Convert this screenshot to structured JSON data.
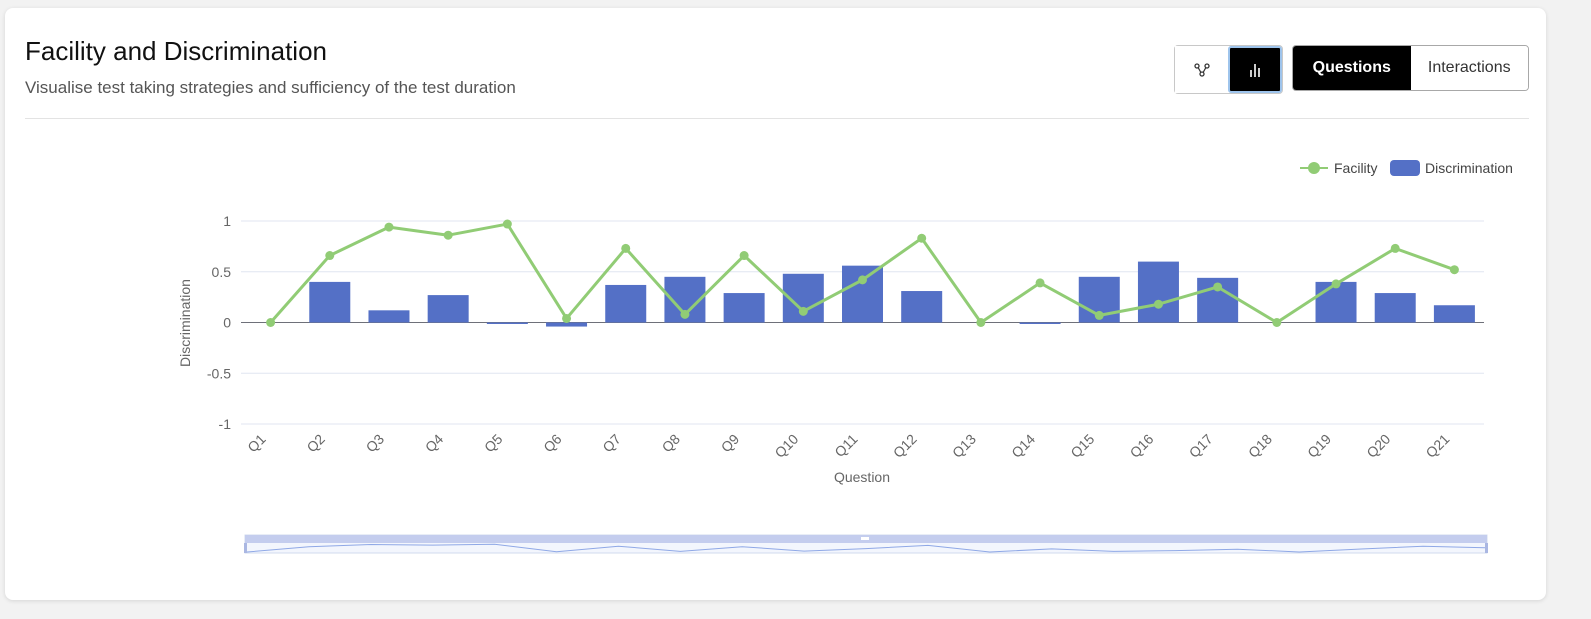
{
  "header": {
    "title": "Facility and Discrimination",
    "subtitle": "Visualise test taking strategies and sufficiency of the test duration"
  },
  "view_toggle": {
    "buttons": [
      {
        "icon": "scatter-icon",
        "active": false
      },
      {
        "icon": "bar-chart-icon",
        "active": true
      }
    ]
  },
  "mode_toggle": {
    "questions_label": "Questions",
    "interactions_label": "Interactions",
    "active": "Questions"
  },
  "colors": {
    "bar": "#5470c6",
    "line": "#91cc75",
    "grid": "#e0e6f1",
    "zero_line": "#6e7079"
  },
  "chart_data": {
    "type": "bar",
    "xlabel": "Question",
    "ylabel": "Discrimination",
    "ylim": [
      -1,
      1
    ],
    "y_ticks": [
      -1,
      -0.5,
      0,
      0.5,
      1
    ],
    "y_tick_labels": [
      "-1",
      "-0.5",
      "0",
      "0.5",
      "1"
    ],
    "categories": [
      "Q1",
      "Q2",
      "Q3",
      "Q4",
      "Q5",
      "Q6",
      "Q7",
      "Q8",
      "Q9",
      "Q10",
      "Q11",
      "Q12",
      "Q13",
      "Q14",
      "Q15",
      "Q16",
      "Q17",
      "Q18",
      "Q19",
      "Q20",
      "Q21"
    ],
    "series": [
      {
        "name": "Discrimination",
        "type": "bar",
        "values": [
          0,
          0.4,
          0.12,
          0.27,
          -0.01,
          -0.04,
          0.37,
          0.45,
          0.29,
          0.48,
          0.56,
          0.31,
          0,
          -0.01,
          0.45,
          0.6,
          0.44,
          0,
          0.4,
          0.29,
          0.17
        ]
      },
      {
        "name": "Facility",
        "type": "line",
        "values": [
          0,
          0.66,
          0.94,
          0.86,
          0.97,
          0.04,
          0.73,
          0.08,
          0.66,
          0.11,
          0.42,
          0.83,
          0,
          0.39,
          0.07,
          0.18,
          0.35,
          0,
          0.38,
          0.73,
          0.52
        ]
      }
    ],
    "legend": [
      "Facility",
      "Discrimination"
    ],
    "legend_position": "top-right",
    "grid": true,
    "data_zoom": {
      "start": 0,
      "end": 100
    }
  }
}
